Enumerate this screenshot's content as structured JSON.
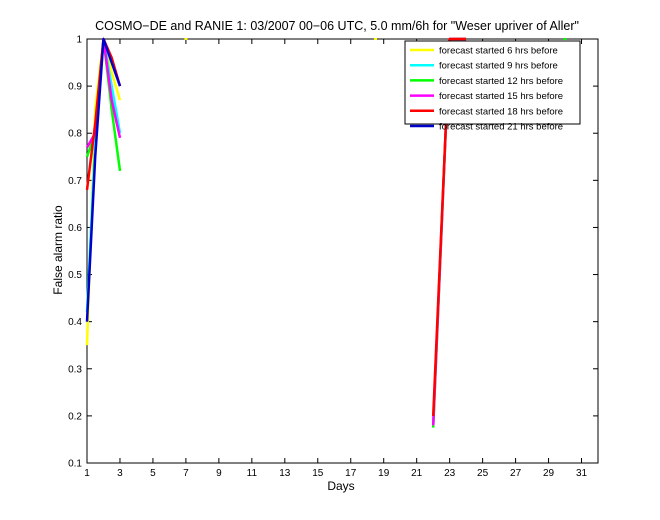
{
  "chart_data": {
    "type": "line",
    "title": "COSMO−DE and RANIE 1: 03/2007 00−06 UTC, 5.0 mm/6h for \"Weser upriver of Aller\"",
    "xlabel": "Days",
    "ylabel": "False alarm ratio",
    "xlim": [
      1,
      32
    ],
    "ylim": [
      0.1,
      1
    ],
    "xticks": [
      1,
      3,
      5,
      7,
      9,
      11,
      13,
      15,
      17,
      19,
      21,
      23,
      25,
      27,
      29,
      31
    ],
    "xtick_labels": [
      "1",
      "3",
      "5",
      "7",
      "9",
      "11",
      "13",
      "15",
      "17",
      "19",
      "21",
      "23",
      "25",
      "27",
      "29",
      "31"
    ],
    "yticks": [
      0.1,
      0.2,
      0.3,
      0.4,
      0.5,
      0.6,
      0.7,
      0.8,
      0.9,
      1
    ],
    "ytick_labels": [
      "0.1",
      "0.2",
      "0.3",
      "0.4",
      "0.5",
      "0.6",
      "0.7",
      "0.8",
      "0.9",
      "1"
    ],
    "grid": false,
    "legend_position": "top-right",
    "series": [
      {
        "name": "forecast started 6 hrs before",
        "color": "#ffff00",
        "segments": [
          [
            [
              1,
              0.35
            ],
            [
              1.5,
              0.85
            ],
            [
              2,
              1.0
            ],
            [
              2.5,
              0.93
            ],
            [
              3,
              0.87
            ]
          ],
          [
            [
              22,
              0.18
            ],
            [
              23,
              1.0
            ],
            [
              24,
              1.0
            ]
          ]
        ],
        "points": [
          [
            7,
            1.0
          ],
          [
            18.5,
            1.0
          ]
        ]
      },
      {
        "name": "forecast started 9 hrs before",
        "color": "#00ffff",
        "segments": [
          [
            [
              1,
              0.42
            ],
            [
              1.5,
              0.78
            ],
            [
              2,
              1.0
            ],
            [
              2.5,
              0.9
            ],
            [
              3,
              0.8
            ]
          ],
          [
            [
              22,
              0.18
            ],
            [
              23,
              1.0
            ],
            [
              24,
              1.0
            ]
          ]
        ],
        "points": []
      },
      {
        "name": "forecast started 12 hrs before",
        "color": "#00ff00",
        "segments": [
          [
            [
              1,
              0.75
            ],
            [
              1.5,
              0.8
            ],
            [
              2,
              1.0
            ],
            [
              2.5,
              0.85
            ],
            [
              3,
              0.72
            ]
          ],
          [
            [
              22,
              0.175
            ],
            [
              23,
              1.0
            ],
            [
              24,
              1.0
            ]
          ]
        ],
        "points": [
          [
            30,
            1.0
          ]
        ]
      },
      {
        "name": "forecast started 15 hrs before",
        "color": "#ff00ff",
        "segments": [
          [
            [
              1,
              0.77
            ],
            [
              1.5,
              0.8
            ],
            [
              2,
              1.0
            ],
            [
              2.5,
              0.87
            ],
            [
              3,
              0.79
            ]
          ],
          [
            [
              22,
              0.18
            ],
            [
              23,
              1.0
            ],
            [
              24,
              1.0
            ]
          ]
        ],
        "points": []
      },
      {
        "name": "forecast started 18 hrs before",
        "color": "#ff0000",
        "segments": [
          [
            [
              1,
              0.68
            ],
            [
              1.5,
              0.82
            ],
            [
              2,
              1.0
            ],
            [
              2.5,
              0.96
            ],
            [
              3,
              0.9
            ]
          ],
          [
            [
              22,
              0.2
            ],
            [
              23,
              1.0
            ],
            [
              24,
              1.0
            ]
          ]
        ],
        "points": []
      },
      {
        "name": "forecast started 21 hrs before",
        "color": "#0000cc",
        "segments": [
          [
            [
              1,
              0.4
            ],
            [
              1.5,
              0.75
            ],
            [
              2,
              1.0
            ],
            [
              2.5,
              0.95
            ],
            [
              3,
              0.9
            ]
          ]
        ],
        "points": []
      }
    ]
  }
}
